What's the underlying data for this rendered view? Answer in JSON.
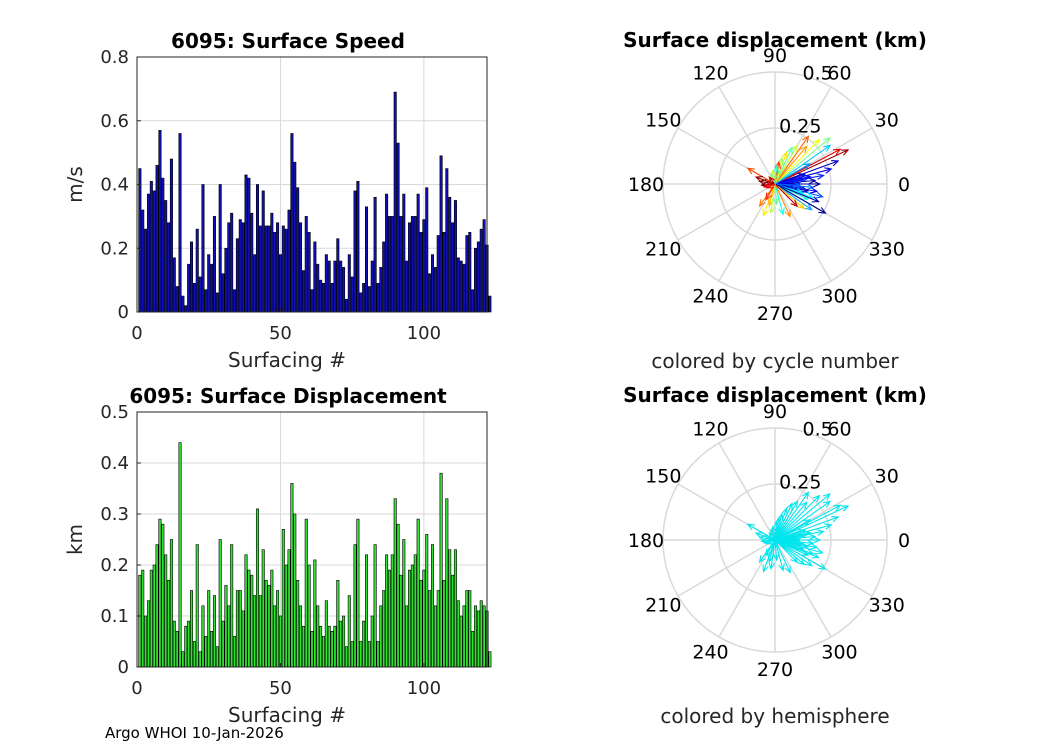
{
  "footer": "Argo WHOI 10-Jan-2026",
  "colors": {
    "speed_bar": "#0f0fb4",
    "displacement_bar": "#33e033",
    "bar_edge": "#000000",
    "hemisphere_arrow": "#00e5ee",
    "grid": "#d9d9d9"
  },
  "chart_data": [
    {
      "id": "speed",
      "type": "bar",
      "title": "6095: Surface Speed",
      "xlabel": "Surfacing #",
      "ylabel": "m/s",
      "xlim": [
        0,
        122
      ],
      "ylim": [
        0,
        0.8
      ],
      "xticks": [
        0,
        50,
        100
      ],
      "yticks": [
        0,
        0.2,
        0.4,
        0.6,
        0.8
      ],
      "xtick_labels": [
        "0",
        "50",
        "100"
      ],
      "ytick_labels": [
        "0",
        "0.2",
        "0.4",
        "0.6",
        "0.8"
      ],
      "grid": true,
      "values": [
        0.45,
        0.32,
        0.26,
        0.37,
        0.41,
        0.38,
        0.46,
        0.57,
        0.42,
        0.35,
        0.28,
        0.48,
        0.17,
        0.08,
        0.56,
        0.05,
        0.02,
        0.15,
        0.22,
        0.09,
        0.26,
        0.11,
        0.4,
        0.07,
        0.18,
        0.15,
        0.3,
        0.06,
        0.4,
        0.12,
        0.2,
        0.28,
        0.31,
        0.07,
        0.23,
        0.29,
        0.28,
        0.43,
        0.42,
        0.31,
        0.18,
        0.4,
        0.27,
        0.38,
        0.27,
        0.27,
        0.31,
        0.25,
        0.28,
        0.18,
        0.27,
        0.26,
        0.32,
        0.56,
        0.47,
        0.39,
        0.28,
        0.13,
        0.3,
        0.25,
        0.07,
        0.22,
        0.15,
        0.1,
        0.09,
        0.18,
        0.16,
        0.09,
        0.16,
        0.23,
        0.16,
        0.14,
        0.04,
        0.18,
        0.11,
        0.38,
        0.41,
        0.06,
        0.09,
        0.33,
        0.08,
        0.16,
        0.36,
        0.09,
        0.14,
        0.22,
        0.37,
        0.3,
        0.3,
        0.69,
        0.53,
        0.3,
        0.37,
        0.16,
        0.28,
        0.3,
        0.3,
        0.37,
        0.25,
        0.29,
        0.39,
        0.12,
        0.18,
        0.14,
        0.24,
        0.49,
        0.25,
        0.45,
        0.36,
        0.28,
        0.35,
        0.17,
        0.16,
        0.15,
        0.24,
        0.25,
        0.07,
        0.2,
        0.22,
        0.26,
        0.29,
        0.21,
        0.05
      ]
    },
    {
      "id": "displacement",
      "type": "bar",
      "title": "6095: Surface Displacement",
      "xlabel": "Surfacing #",
      "ylabel": "km",
      "xlim": [
        0,
        122
      ],
      "ylim": [
        0,
        0.5
      ],
      "xticks": [
        0,
        50,
        100
      ],
      "yticks": [
        0,
        0.1,
        0.2,
        0.3,
        0.4,
        0.5
      ],
      "xtick_labels": [
        "0",
        "50",
        "100"
      ],
      "ytick_labels": [
        "0",
        "0.1",
        "0.2",
        "0.3",
        "0.4",
        "0.5"
      ],
      "grid": true,
      "values": [
        0.18,
        0.19,
        0.1,
        0.13,
        0.19,
        0.2,
        0.24,
        0.29,
        0.28,
        0.22,
        0.17,
        0.25,
        0.09,
        0.07,
        0.44,
        0.03,
        0.08,
        0.09,
        0.15,
        0.05,
        0.24,
        0.03,
        0.12,
        0.06,
        0.15,
        0.07,
        0.14,
        0.04,
        0.25,
        0.09,
        0.16,
        0.12,
        0.24,
        0.06,
        0.15,
        0.15,
        0.11,
        0.22,
        0.19,
        0.18,
        0.14,
        0.31,
        0.14,
        0.23,
        0.17,
        0.16,
        0.19,
        0.12,
        0.15,
        0.1,
        0.27,
        0.2,
        0.23,
        0.36,
        0.3,
        0.17,
        0.12,
        0.08,
        0.29,
        0.2,
        0.07,
        0.21,
        0.12,
        0.08,
        0.06,
        0.13,
        0.08,
        0.07,
        0.08,
        0.17,
        0.09,
        0.1,
        0.04,
        0.14,
        0.05,
        0.24,
        0.29,
        0.05,
        0.09,
        0.22,
        0.05,
        0.1,
        0.24,
        0.05,
        0.12,
        0.15,
        0.22,
        0.19,
        0.22,
        0.33,
        0.28,
        0.18,
        0.25,
        0.12,
        0.19,
        0.2,
        0.22,
        0.29,
        0.17,
        0.19,
        0.26,
        0.15,
        0.24,
        0.12,
        0.15,
        0.38,
        0.17,
        0.33,
        0.23,
        0.18,
        0.23,
        0.13,
        0.1,
        0.12,
        0.15,
        0.15,
        0.07,
        0.12,
        0.11,
        0.13,
        0.12,
        0.11,
        0.03
      ]
    },
    {
      "id": "polar-cycle",
      "type": "polar-compass",
      "title": "Surface displacement (km)",
      "caption": "colored by cycle number",
      "rlim": [
        0,
        0.5
      ],
      "rticks": [
        0.25,
        0.5
      ],
      "rtick_labels": [
        "0.25",
        "0.5"
      ],
      "theta_ticks": [
        0,
        30,
        60,
        90,
        120,
        150,
        180,
        210,
        240,
        270,
        300,
        330
      ],
      "theta_labels": [
        "0",
        "30",
        "60",
        "90",
        "120",
        "150",
        "180",
        "210",
        "240",
        "270",
        "300",
        "330"
      ],
      "color_mode": "jet-by-cycle",
      "vectors": [
        {
          "dir": 25,
          "r": 0.36,
          "cycle": 118
        },
        {
          "dir": 28,
          "r": 0.33,
          "cycle": 110
        },
        {
          "dir": 35,
          "r": 0.3,
          "cycle": 40
        },
        {
          "dir": 40,
          "r": 0.32,
          "cycle": 60
        },
        {
          "dir": 45,
          "r": 0.28,
          "cycle": 75
        },
        {
          "dir": 50,
          "r": 0.22,
          "cycle": 88
        },
        {
          "dir": 55,
          "r": 0.26,
          "cycle": 95
        },
        {
          "dir": 60,
          "r": 0.2,
          "cycle": 70
        },
        {
          "dir": 65,
          "r": 0.18,
          "cycle": 55
        },
        {
          "dir": 70,
          "r": 0.15,
          "cycle": 80
        },
        {
          "dir": 75,
          "r": 0.12,
          "cycle": 65
        },
        {
          "dir": 80,
          "r": 0.1,
          "cycle": 100
        },
        {
          "dir": 20,
          "r": 0.3,
          "cycle": 8
        },
        {
          "dir": 15,
          "r": 0.26,
          "cycle": 12
        },
        {
          "dir": 10,
          "r": 0.22,
          "cycle": 20
        },
        {
          "dir": 5,
          "r": 0.18,
          "cycle": 5
        },
        {
          "dir": 0,
          "r": 0.2,
          "cycle": 3
        },
        {
          "dir": -5,
          "r": 0.17,
          "cycle": 30
        },
        {
          "dir": -10,
          "r": 0.19,
          "cycle": 14
        },
        {
          "dir": -15,
          "r": 0.22,
          "cycle": 25
        },
        {
          "dir": -20,
          "r": 0.18,
          "cycle": 45
        },
        {
          "dir": -25,
          "r": 0.16,
          "cycle": 50
        },
        {
          "dir": -30,
          "r": 0.26,
          "cycle": 2
        },
        {
          "dir": -35,
          "r": 0.2,
          "cycle": 35
        },
        {
          "dir": -40,
          "r": 0.17,
          "cycle": 82
        },
        {
          "dir": -45,
          "r": 0.14,
          "cycle": 115
        },
        {
          "dir": 18,
          "r": 0.14,
          "cycle": 9
        },
        {
          "dir": 8,
          "r": 0.13,
          "cycle": 18
        },
        {
          "dir": -8,
          "r": 0.12,
          "cycle": 22
        },
        {
          "dir": 12,
          "r": 0.16,
          "cycle": 16
        },
        {
          "dir": -12,
          "r": 0.15,
          "cycle": 6
        },
        {
          "dir": 3,
          "r": 0.1,
          "cycle": 11
        },
        {
          "dir": -3,
          "r": 0.11,
          "cycle": 27
        },
        {
          "dir": 30,
          "r": 0.18,
          "cycle": 33
        },
        {
          "dir": -18,
          "r": 0.13,
          "cycle": 42
        },
        {
          "dir": -22,
          "r": 0.21,
          "cycle": 4
        },
        {
          "dir": 150,
          "r": 0.14,
          "cycle": 98
        },
        {
          "dir": 160,
          "r": 0.09,
          "cycle": 120
        },
        {
          "dir": 170,
          "r": 0.07,
          "cycle": 122
        },
        {
          "dir": 185,
          "r": 0.06,
          "cycle": 121
        },
        {
          "dir": 195,
          "r": 0.05,
          "cycle": 110
        },
        {
          "dir": 235,
          "r": 0.12,
          "cycle": 92
        },
        {
          "dir": 250,
          "r": 0.15,
          "cycle": 78
        },
        {
          "dir": 255,
          "r": 0.1,
          "cycle": 85
        },
        {
          "dir": 262,
          "r": 0.13,
          "cycle": 68
        },
        {
          "dir": 275,
          "r": 0.09,
          "cycle": 58
        },
        {
          "dir": 285,
          "r": 0.14,
          "cycle": 48
        },
        {
          "dir": 295,
          "r": 0.16,
          "cycle": 90
        },
        {
          "dir": 240,
          "r": 0.08,
          "cycle": 102
        },
        {
          "dir": 205,
          "r": 0.04,
          "cycle": 105
        },
        {
          "dir": 100,
          "r": 0.06,
          "cycle": 72
        },
        {
          "dir": 110,
          "r": 0.05,
          "cycle": 62
        },
        {
          "dir": 130,
          "r": 0.04,
          "cycle": 114
        },
        {
          "dir": 85,
          "r": 0.08,
          "cycle": 52
        }
      ]
    },
    {
      "id": "polar-hemisphere",
      "type": "polar-compass",
      "title": "Surface displacement (km)",
      "caption": "colored by hemisphere",
      "rlim": [
        0,
        0.5
      ],
      "rticks": [
        0.25,
        0.5
      ],
      "rtick_labels": [
        "0.25",
        "0.5"
      ],
      "theta_ticks": [
        0,
        30,
        60,
        90,
        120,
        150,
        180,
        210,
        240,
        270,
        300,
        330
      ],
      "theta_labels": [
        "0",
        "30",
        "60",
        "90",
        "120",
        "150",
        "180",
        "210",
        "240",
        "270",
        "300",
        "330"
      ],
      "color_mode": "single",
      "vectors": [
        {
          "dir": 25,
          "r": 0.36
        },
        {
          "dir": 28,
          "r": 0.33
        },
        {
          "dir": 35,
          "r": 0.3
        },
        {
          "dir": 40,
          "r": 0.32
        },
        {
          "dir": 45,
          "r": 0.28
        },
        {
          "dir": 50,
          "r": 0.22
        },
        {
          "dir": 55,
          "r": 0.26
        },
        {
          "dir": 60,
          "r": 0.2
        },
        {
          "dir": 65,
          "r": 0.18
        },
        {
          "dir": 70,
          "r": 0.15
        },
        {
          "dir": 75,
          "r": 0.12
        },
        {
          "dir": 80,
          "r": 0.1
        },
        {
          "dir": 20,
          "r": 0.3
        },
        {
          "dir": 15,
          "r": 0.26
        },
        {
          "dir": 10,
          "r": 0.22
        },
        {
          "dir": 5,
          "r": 0.18
        },
        {
          "dir": 0,
          "r": 0.2
        },
        {
          "dir": -5,
          "r": 0.17
        },
        {
          "dir": -10,
          "r": 0.19
        },
        {
          "dir": -15,
          "r": 0.22
        },
        {
          "dir": -20,
          "r": 0.18
        },
        {
          "dir": -25,
          "r": 0.16
        },
        {
          "dir": -30,
          "r": 0.26
        },
        {
          "dir": -35,
          "r": 0.2
        },
        {
          "dir": -40,
          "r": 0.17
        },
        {
          "dir": -45,
          "r": 0.14
        },
        {
          "dir": 18,
          "r": 0.14
        },
        {
          "dir": 8,
          "r": 0.13
        },
        {
          "dir": -8,
          "r": 0.12
        },
        {
          "dir": 12,
          "r": 0.16
        },
        {
          "dir": -12,
          "r": 0.15
        },
        {
          "dir": 3,
          "r": 0.1
        },
        {
          "dir": -3,
          "r": 0.11
        },
        {
          "dir": 30,
          "r": 0.18
        },
        {
          "dir": -18,
          "r": 0.13
        },
        {
          "dir": -22,
          "r": 0.21
        },
        {
          "dir": 150,
          "r": 0.14
        },
        {
          "dir": 160,
          "r": 0.09
        },
        {
          "dir": 170,
          "r": 0.07
        },
        {
          "dir": 185,
          "r": 0.06
        },
        {
          "dir": 195,
          "r": 0.05
        },
        {
          "dir": 235,
          "r": 0.12
        },
        {
          "dir": 250,
          "r": 0.15
        },
        {
          "dir": 255,
          "r": 0.1
        },
        {
          "dir": 262,
          "r": 0.13
        },
        {
          "dir": 275,
          "r": 0.09
        },
        {
          "dir": 285,
          "r": 0.14
        },
        {
          "dir": 295,
          "r": 0.16
        },
        {
          "dir": 240,
          "r": 0.08
        },
        {
          "dir": 205,
          "r": 0.04
        },
        {
          "dir": 100,
          "r": 0.06
        },
        {
          "dir": 110,
          "r": 0.05
        },
        {
          "dir": 130,
          "r": 0.04
        },
        {
          "dir": 85,
          "r": 0.08
        }
      ]
    }
  ]
}
